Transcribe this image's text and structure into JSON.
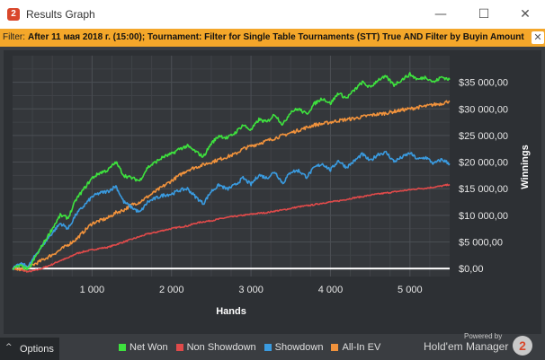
{
  "window": {
    "icon_glyph": "2",
    "title": "Results Graph",
    "minimize_icon": "minimize-icon",
    "maximize_icon": "maximize-icon",
    "close_icon": "close-icon",
    "minimize_glyph": "—",
    "maximize_glyph": "☐",
    "close_glyph": "✕"
  },
  "filter": {
    "label": "Filter:",
    "text": "After 11 мая 2018 г. (15:00); Tournament: Filter for Single Table Tournaments (STT) True AND Filter by Buyin Amount",
    "close_glyph": "✕"
  },
  "footer": {
    "options_chevron": "^",
    "options_label": "Options",
    "powered_by": "Powered by",
    "brand": "Hold'em Manager",
    "brand_glyph": "2"
  },
  "colors": {
    "net_won": "#3ee23e",
    "non_showdown": "#e04a4a",
    "showdown": "#3a9be0",
    "all_in_ev": "#f0923c",
    "filter_bar": "#f4a72a",
    "plot_bg": "#2d3034"
  },
  "chart_data": {
    "type": "line",
    "xlabel": "Hands",
    "ylabel": "Winnings",
    "xlim": [
      0,
      5500
    ],
    "ylim": [
      -1500,
      40000
    ],
    "x_ticks": [
      1000,
      2000,
      3000,
      4000,
      5000
    ],
    "x_tick_labels": [
      "1 000",
      "2 000",
      "3 000",
      "4 000",
      "5 000"
    ],
    "y_ticks": [
      0,
      5000,
      10000,
      15000,
      20000,
      25000,
      30000,
      35000
    ],
    "y_tick_labels": [
      "$0,00",
      "$5 000,00",
      "$10 000,00",
      "$15 000,00",
      "$20 000,00",
      "$25 000,00",
      "$30 000,00",
      "$35 000,00"
    ],
    "grid": true,
    "legend_position": "bottom",
    "x": [
      0,
      100,
      200,
      300,
      400,
      500,
      600,
      700,
      800,
      900,
      1000,
      1100,
      1200,
      1300,
      1400,
      1500,
      1600,
      1700,
      1800,
      1900,
      2000,
      2100,
      2200,
      2300,
      2400,
      2500,
      2600,
      2700,
      2800,
      2900,
      3000,
      3100,
      3200,
      3300,
      3400,
      3500,
      3600,
      3700,
      3800,
      3900,
      4000,
      4100,
      4200,
      4300,
      4400,
      4500,
      4600,
      4700,
      4800,
      4900,
      5000,
      5100,
      5200,
      5300,
      5400,
      5500
    ],
    "series": [
      {
        "name": "Net Won",
        "color_key": "net_won",
        "values": [
          0,
          500,
          -200,
          2500,
          5000,
          7500,
          10000,
          9500,
          13000,
          15000,
          17000,
          18000,
          18500,
          20000,
          17500,
          17000,
          16500,
          19000,
          20000,
          21000,
          21500,
          22500,
          23000,
          22000,
          21000,
          23500,
          25000,
          24500,
          25500,
          27000,
          26000,
          28000,
          27500,
          29000,
          27000,
          29500,
          30000,
          29000,
          31000,
          32000,
          31000,
          33000,
          32000,
          33500,
          35000,
          34000,
          35500,
          36000,
          34500,
          35500,
          36500,
          35500,
          36000,
          35000,
          36000,
          35500
        ]
      },
      {
        "name": "Non Showdown",
        "color_key": "non_showdown",
        "values": [
          0,
          -300,
          -600,
          -300,
          200,
          800,
          1500,
          2000,
          2800,
          3200,
          3500,
          3800,
          4000,
          4500,
          5000,
          5500,
          6000,
          6500,
          6800,
          7200,
          7500,
          7800,
          8000,
          8500,
          8800,
          9000,
          9300,
          9600,
          9800,
          10000,
          10200,
          10400,
          10500,
          10800,
          11000,
          11300,
          11600,
          11800,
          12000,
          12300,
          12500,
          12700,
          13000,
          13300,
          13500,
          13800,
          14000,
          14200,
          14400,
          14600,
          14800,
          15000,
          15100,
          15300,
          15500,
          15800
        ]
      },
      {
        "name": "Showdown",
        "color_key": "showdown",
        "values": [
          0,
          800,
          400,
          2800,
          4800,
          6700,
          8500,
          7500,
          10200,
          11800,
          13500,
          14200,
          14500,
          15500,
          12500,
          11500,
          10500,
          12500,
          13200,
          13800,
          14000,
          14700,
          15000,
          13500,
          12200,
          14500,
          15700,
          14900,
          15700,
          17000,
          15800,
          17600,
          17000,
          18200,
          16000,
          18200,
          18400,
          17200,
          19000,
          19700,
          18500,
          20300,
          19000,
          20200,
          21500,
          20200,
          21500,
          21800,
          20100,
          20900,
          21700,
          20500,
          20900,
          19700,
          20500,
          19700
        ]
      },
      {
        "name": "All-In EV",
        "color_key": "all_in_ev",
        "values": [
          0,
          -200,
          300,
          1000,
          1800,
          2600,
          3500,
          4500,
          5500,
          7000,
          8500,
          9000,
          9500,
          10500,
          11000,
          12000,
          12500,
          13500,
          14500,
          15500,
          16500,
          17500,
          18500,
          19000,
          19500,
          20000,
          20500,
          21000,
          21500,
          22500,
          23000,
          23500,
          24000,
          24500,
          25000,
          25500,
          26000,
          26500,
          27000,
          27200,
          27500,
          27800,
          28000,
          28200,
          28500,
          28800,
          29000,
          29200,
          29500,
          29800,
          30000,
          30300,
          30500,
          30800,
          31000,
          31500
        ]
      }
    ]
  }
}
